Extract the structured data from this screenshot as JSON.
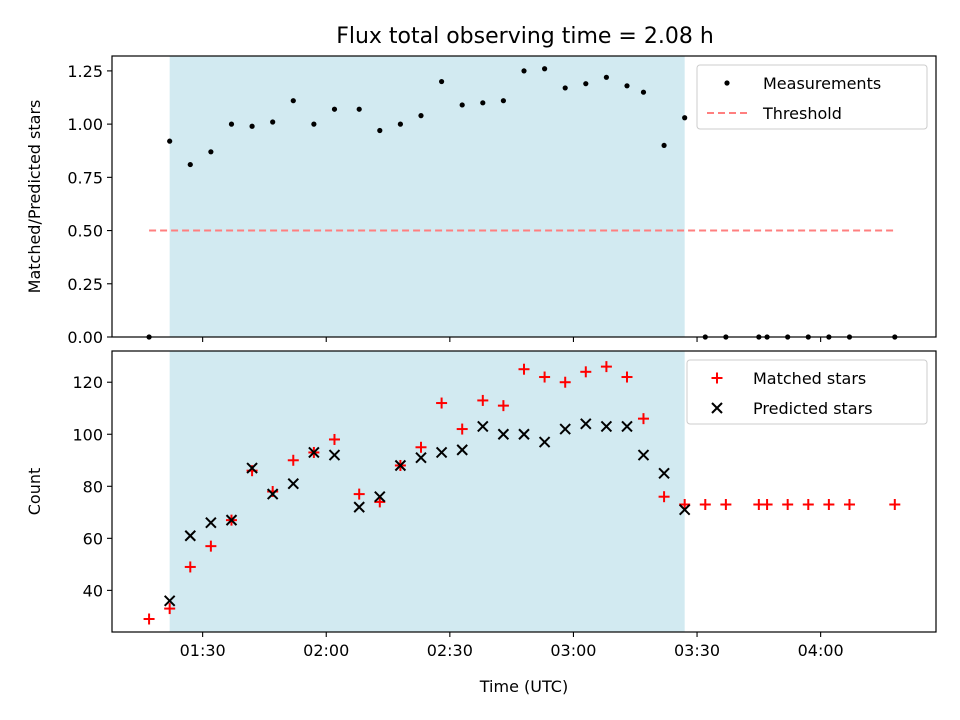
{
  "title": "Flux total observing time = 2.08 h",
  "colors": {
    "span": "#add8e6",
    "measurement": "#000000",
    "threshold": "#ff7f7f",
    "matched": "#ff0000",
    "predicted": "#000000"
  },
  "chart_data": [
    {
      "type": "scatter",
      "ylabel": "Matched/Predicted stars",
      "ylim": [
        0,
        1.32
      ],
      "yticks": [
        0,
        0.25,
        0.5,
        0.75,
        1.0,
        1.25
      ],
      "ytick_labels": [
        "0.00",
        "0.25",
        "0.50",
        "0.75",
        "1.00",
        "1.25"
      ],
      "xlim": [
        "01:08",
        "04:28"
      ],
      "xticks_minutes": [
        90,
        120,
        150,
        180,
        210,
        240
      ],
      "legend_position": "upper right",
      "shaded_span": [
        "01:22",
        "03:27"
      ],
      "series": [
        {
          "name": "Measurements",
          "marker": "dot",
          "x": [
            "01:17",
            "01:22",
            "01:27",
            "01:32",
            "01:37",
            "01:42",
            "01:47",
            "01:52",
            "01:57",
            "02:02",
            "02:08",
            "02:13",
            "02:18",
            "02:23",
            "02:28",
            "02:33",
            "02:38",
            "02:43",
            "02:48",
            "02:53",
            "02:58",
            "03:03",
            "03:08",
            "03:13",
            "03:17",
            "03:22",
            "03:27",
            "03:32",
            "03:37",
            "03:45",
            "03:47",
            "03:52",
            "03:57",
            "04:02",
            "04:07",
            "04:18"
          ],
          "y": [
            0.0,
            0.92,
            0.81,
            0.87,
            1.0,
            0.99,
            1.01,
            1.11,
            1.0,
            1.07,
            1.07,
            0.97,
            1.0,
            1.04,
            1.2,
            1.09,
            1.1,
            1.11,
            1.25,
            1.26,
            1.17,
            1.19,
            1.22,
            1.18,
            1.15,
            0.9,
            1.03,
            0.0,
            0.0,
            0.0,
            0.0,
            0.0,
            0.0,
            0.0,
            0.0,
            0.0
          ]
        },
        {
          "name": "Threshold",
          "marker": "dashed-line",
          "x": [
            "01:17",
            "04:18"
          ],
          "y": [
            0.5,
            0.5
          ]
        }
      ]
    },
    {
      "type": "scatter",
      "xlabel": "Time (UTC)",
      "ylabel": "Count",
      "ylim": [
        24,
        132
      ],
      "yticks": [
        40,
        60,
        80,
        100,
        120
      ],
      "ytick_labels": [
        "40",
        "60",
        "80",
        "100",
        "120"
      ],
      "xlim": [
        "01:08",
        "04:28"
      ],
      "xticks_minutes": [
        90,
        120,
        150,
        180,
        210,
        240
      ],
      "xtick_labels": [
        "01:30",
        "02:00",
        "02:30",
        "03:00",
        "03:30",
        "04:00"
      ],
      "legend_position": "upper right",
      "shaded_span": [
        "01:22",
        "03:27"
      ],
      "series": [
        {
          "name": "Matched stars",
          "marker": "plus",
          "x": [
            "01:17",
            "01:22",
            "01:27",
            "01:32",
            "01:37",
            "01:42",
            "01:47",
            "01:52",
            "01:57",
            "02:02",
            "02:08",
            "02:13",
            "02:18",
            "02:23",
            "02:28",
            "02:33",
            "02:38",
            "02:43",
            "02:48",
            "02:53",
            "02:58",
            "03:03",
            "03:08",
            "03:13",
            "03:17",
            "03:22",
            "03:27",
            "03:32",
            "03:37",
            "03:45",
            "03:47",
            "03:52",
            "03:57",
            "04:02",
            "04:07",
            "04:18"
          ],
          "y": [
            29,
            33,
            49,
            57,
            67,
            86,
            78,
            90,
            93,
            98,
            77,
            74,
            88,
            95,
            112,
            102,
            113,
            111,
            125,
            122,
            120,
            124,
            126,
            122,
            106,
            76,
            73,
            73,
            73,
            73,
            73,
            73,
            73,
            73,
            73,
            73
          ]
        },
        {
          "name": "Predicted stars",
          "marker": "x",
          "x": [
            "01:22",
            "01:27",
            "01:32",
            "01:37",
            "01:42",
            "01:47",
            "01:52",
            "01:57",
            "02:02",
            "02:08",
            "02:13",
            "02:18",
            "02:23",
            "02:28",
            "02:33",
            "02:38",
            "02:43",
            "02:48",
            "02:53",
            "02:58",
            "03:03",
            "03:08",
            "03:13",
            "03:17",
            "03:22",
            "03:27"
          ],
          "y": [
            36,
            61,
            66,
            67,
            87,
            77,
            81,
            93,
            92,
            72,
            76,
            88,
            91,
            93,
            94,
            103,
            100,
            100,
            97,
            102,
            104,
            103,
            103,
            92,
            85,
            71
          ]
        }
      ]
    }
  ]
}
